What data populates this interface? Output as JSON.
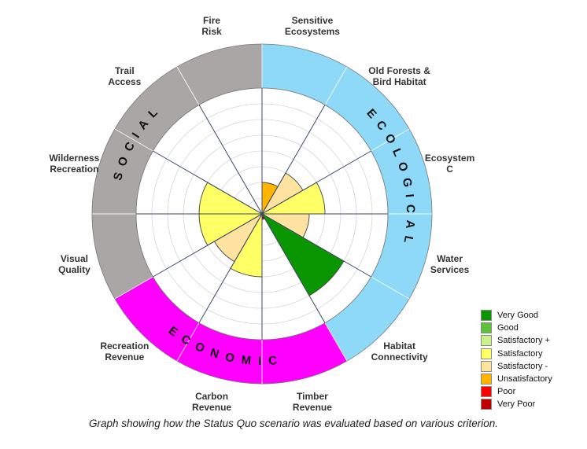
{
  "chart_data": {
    "type": "radial",
    "max_level": 8,
    "criteria": [
      {
        "id": "sensitive",
        "lines": [
          "Sensitive",
          "Ecosystems"
        ],
        "value": 2,
        "rating": "Unsatisfactory",
        "group": "ecological"
      },
      {
        "id": "oldforests",
        "lines": [
          "Old Forests &",
          "Bird Habitat"
        ],
        "value": 3,
        "rating": "Satisfactory -",
        "group": "ecological"
      },
      {
        "id": "ecosystemc",
        "lines": [
          "Ecosystem",
          "C"
        ],
        "value": 4,
        "rating": "Satisfactory",
        "group": "ecological"
      },
      {
        "id": "water",
        "lines": [
          "Water",
          "Services"
        ],
        "value": 3,
        "rating": "Satisfactory -",
        "group": "ecological"
      },
      {
        "id": "habitat",
        "lines": [
          "Habitat",
          "Connectivity"
        ],
        "value": 6,
        "rating": "Very Good",
        "group": "ecological"
      },
      {
        "id": "timber",
        "lines": [
          "Timber",
          "Revenue"
        ],
        "value": 0.35,
        "rating": "Very Poor",
        "group": "economic"
      },
      {
        "id": "carbon",
        "lines": [
          "Carbon",
          "Revenue"
        ],
        "value": 4,
        "rating": "Satisfactory",
        "group": "economic"
      },
      {
        "id": "recreation",
        "lines": [
          "Recreation",
          "Revenue"
        ],
        "value": 3.5,
        "rating": "Satisfactory -",
        "group": "economic"
      },
      {
        "id": "visual",
        "lines": [
          "Visual",
          "Quality"
        ],
        "value": 4,
        "rating": "Satisfactory",
        "group": "social"
      },
      {
        "id": "wilderness",
        "lines": [
          "Wilderness",
          "Recreation"
        ],
        "value": 4,
        "rating": "Satisfactory",
        "group": "social"
      },
      {
        "id": "trail",
        "lines": [
          "Trail",
          "Access"
        ],
        "value": 0,
        "rating": "",
        "group": "social"
      },
      {
        "id": "fire",
        "lines": [
          "Fire",
          "Risk"
        ],
        "value": 0,
        "rating": "",
        "group": "social"
      }
    ],
    "groups": [
      {
        "id": "ecological",
        "text": "ECOLOGICAL",
        "color": "#8dd9f7"
      },
      {
        "id": "economic",
        "text": "ECONOMIC",
        "color": "#ff00ff"
      },
      {
        "id": "social",
        "text": "SOCIAL",
        "color": "#aaa6a6"
      }
    ],
    "legend": [
      {
        "label": "Very Good",
        "color": "#0a9600"
      },
      {
        "label": "Good",
        "color": "#5cc238"
      },
      {
        "label": "Satisfactory +",
        "color": "#c9f28a"
      },
      {
        "label": "Satisfactory",
        "color": "#ffff66"
      },
      {
        "label": "Satisfactory -",
        "color": "#fde2a0"
      },
      {
        "label": "Unsatisfactory",
        "color": "#ffb400"
      },
      {
        "label": "Poor",
        "color": "#ff0000"
      },
      {
        "label": "Very Poor",
        "color": "#c00000"
      }
    ],
    "caption": "Graph showing how the Status Quo scenario was evaluated based on various criterion."
  }
}
